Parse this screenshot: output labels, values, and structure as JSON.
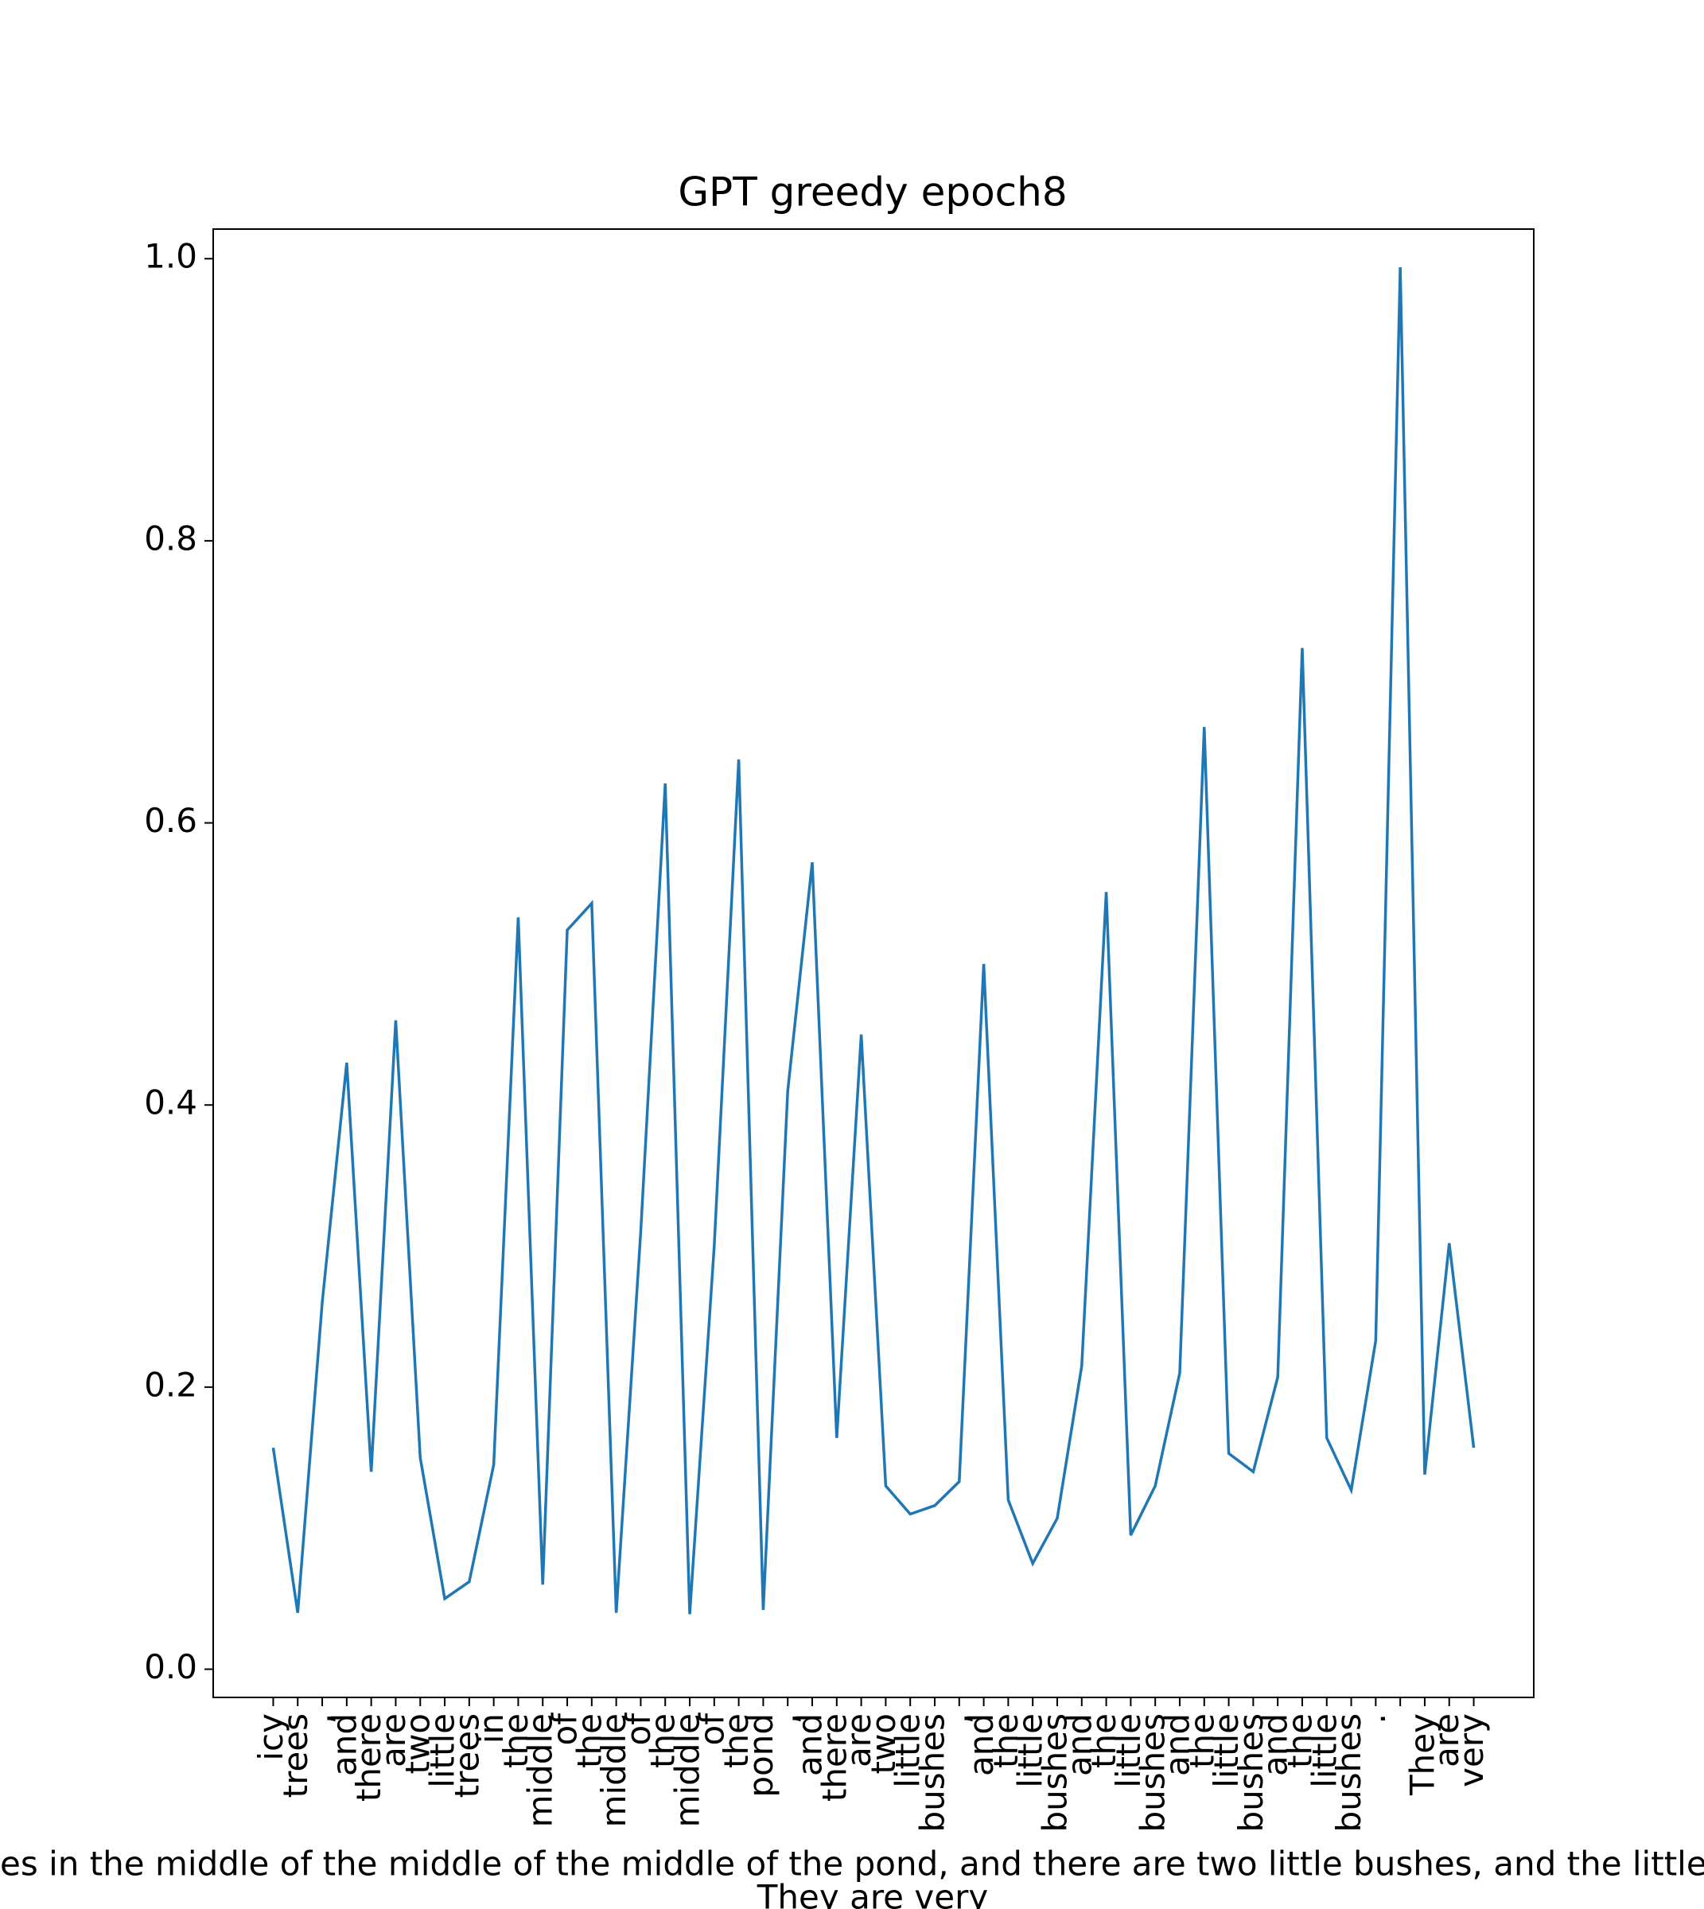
{
  "chart_data": {
    "type": "line",
    "title": "GPT greedy epoch8",
    "xlabel": [
      "es in the middle of the middle of the middle of the pond, and there are two little bushes, and the little b",
      "They are very"
    ],
    "categories": [
      "icy",
      "trees",
      ",",
      "and",
      "there",
      "are",
      "two",
      "little",
      "trees",
      "in",
      "the",
      "middle",
      "of",
      "the",
      "middle",
      "of",
      "the",
      "middle",
      "of",
      "the",
      "pond",
      ",",
      "and",
      "there",
      "are",
      "two",
      "little",
      "bushes",
      ",",
      "and",
      "the",
      "little",
      "bushes",
      "and",
      "the",
      "little",
      "bushes",
      "and",
      "the",
      "little",
      "bushes",
      "and",
      "the",
      "little",
      "bushes",
      ".",
      null,
      "They",
      "are",
      "very"
    ],
    "series": [
      {
        "color": "#1f77b4",
        "values": [
          0.157,
          0.04,
          0.26,
          0.43,
          0.14,
          0.46,
          0.15,
          0.05,
          0.062,
          0.145,
          0.533,
          0.06,
          0.524,
          0.543,
          0.04,
          0.31,
          0.628,
          0.039,
          0.3,
          0.645,
          0.042,
          0.41,
          0.572,
          0.164,
          0.45,
          0.13,
          0.11,
          0.116,
          0.133,
          0.5,
          0.12,
          0.075,
          0.107,
          0.215,
          0.551,
          0.095,
          0.13,
          0.21,
          0.668,
          0.153,
          0.14,
          0.207,
          0.724,
          0.164,
          0.127,
          0.233,
          0.994,
          0.138,
          0.302,
          0.157
        ]
      }
    ],
    "ylim": [
      -0.02,
      1.021
    ],
    "yticks": [
      {
        "value": 0,
        "label": "0.0"
      },
      0.2,
      0.4,
      0.6,
      0.8,
      {
        "value": 1,
        "label": "1.0"
      }
    ]
  }
}
